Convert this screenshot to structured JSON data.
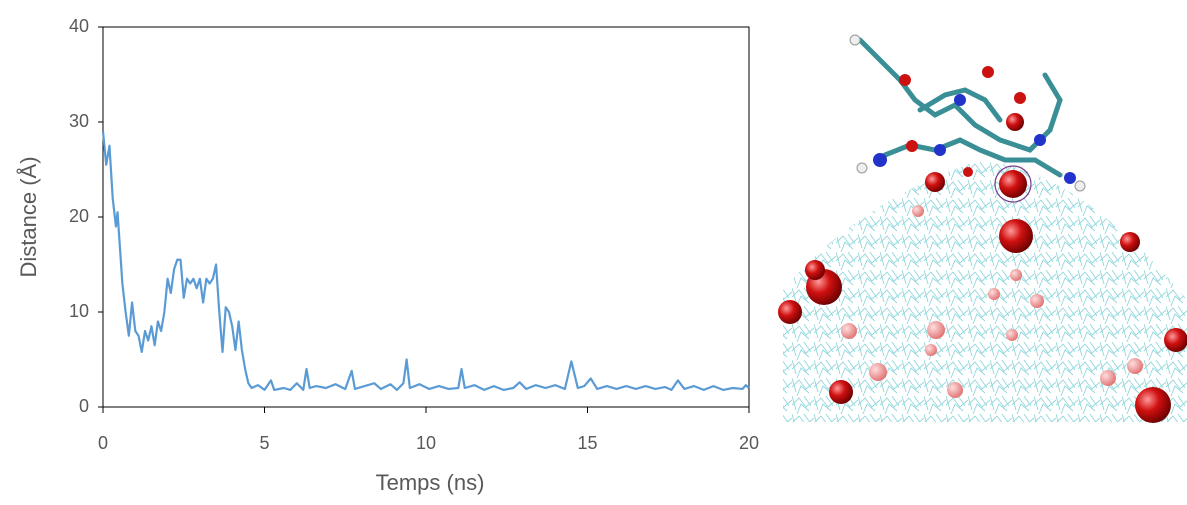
{
  "chart_data": {
    "type": "line",
    "x_label": "Temps (ns)",
    "y_label": "Distance (Å)",
    "color": "#5b9bd5",
    "xlim": [
      0,
      20
    ],
    "xticks": [
      0,
      5,
      10,
      15,
      20
    ],
    "ylim": [
      0,
      40
    ],
    "yticks": [
      0,
      10,
      20,
      30,
      40
    ],
    "x": [
      0,
      0.1,
      0.2,
      0.3,
      0.4,
      0.45,
      0.5,
      0.6,
      0.7,
      0.8,
      0.9,
      1.0,
      1.1,
      1.2,
      1.3,
      1.4,
      1.5,
      1.6,
      1.7,
      1.8,
      1.9,
      2.0,
      2.1,
      2.2,
      2.3,
      2.4,
      2.5,
      2.6,
      2.7,
      2.8,
      2.9,
      3.0,
      3.1,
      3.2,
      3.3,
      3.4,
      3.5,
      3.6,
      3.7,
      3.8,
      3.9,
      4.0,
      4.1,
      4.2,
      4.3,
      4.4,
      4.5,
      4.6,
      4.8,
      5.0,
      5.2,
      5.3,
      5.6,
      5.8,
      6.0,
      6.2,
      6.3,
      6.4,
      6.6,
      6.9,
      7.2,
      7.5,
      7.7,
      7.8,
      8.1,
      8.4,
      8.6,
      8.9,
      9.1,
      9.3,
      9.4,
      9.5,
      9.8,
      10.1,
      10.4,
      10.7,
      11.0,
      11.1,
      11.2,
      11.5,
      11.8,
      12.1,
      12.4,
      12.7,
      12.9,
      13.1,
      13.4,
      13.7,
      14.0,
      14.3,
      14.5,
      14.7,
      14.9,
      15.1,
      15.3,
      15.6,
      15.9,
      16.2,
      16.5,
      16.8,
      17.1,
      17.4,
      17.6,
      17.8,
      18.0,
      18.3,
      18.6,
      18.9,
      19.2,
      19.5,
      19.8,
      19.9,
      20
    ],
    "values": [
      29,
      25.5,
      27.5,
      22,
      19,
      20.5,
      18,
      13,
      10,
      7.5,
      11,
      8,
      7.5,
      5.8,
      8,
      7,
      8.5,
      6.5,
      9,
      8,
      10,
      13.5,
      12,
      14.5,
      15.5,
      15.5,
      11.5,
      13.5,
      13,
      13.5,
      12.5,
      13.5,
      11,
      13.5,
      13,
      13.5,
      15,
      10,
      5.8,
      10.5,
      10,
      8.5,
      6,
      9,
      6,
      4,
      2.5,
      2,
      2.3,
      1.8,
      2.8,
      1.8,
      2,
      1.8,
      2.5,
      1.8,
      4,
      2,
      2.2,
      2,
      2.4,
      1.9,
      3.8,
      1.9,
      2.2,
      2.5,
      1.9,
      2.4,
      1.8,
      2.5,
      5,
      2,
      2.4,
      1.9,
      2.2,
      1.9,
      2,
      4,
      2,
      2.3,
      1.8,
      2.2,
      1.8,
      2,
      2.6,
      1.9,
      2.3,
      2,
      2.3,
      1.9,
      4.8,
      2,
      2.2,
      3,
      1.9,
      2.2,
      1.9,
      2.2,
      1.9,
      2.2,
      1.9,
      2.1,
      1.8,
      2.8,
      1.9,
      2.2,
      1.8,
      2.2,
      1.8,
      2,
      1.9,
      2.3,
      2
    ]
  }
}
